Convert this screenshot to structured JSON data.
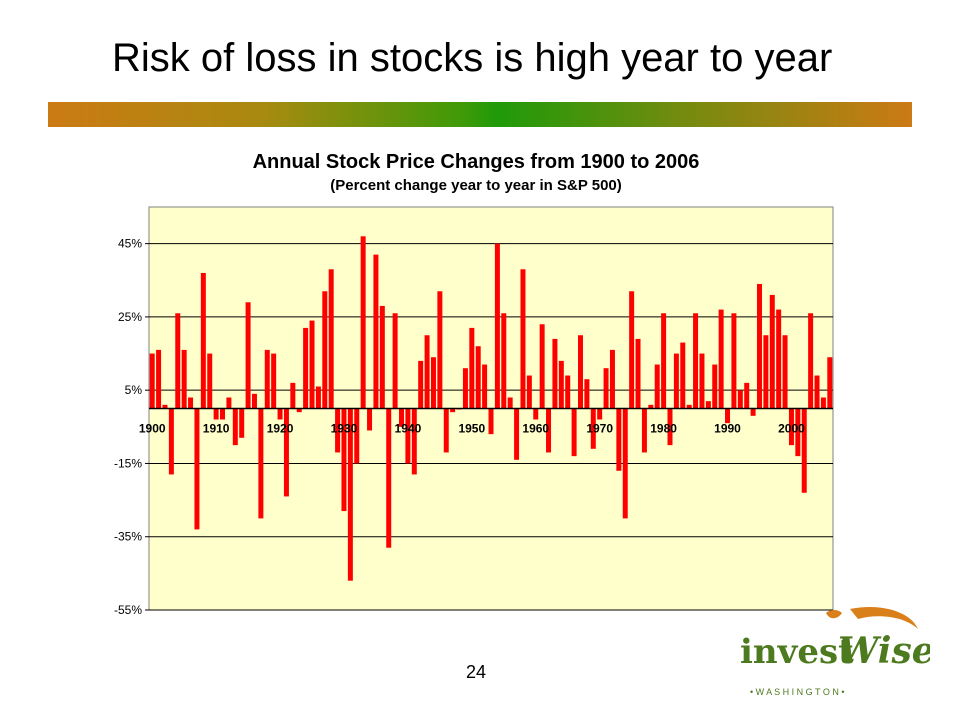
{
  "slide": {
    "title": "Risk of loss in stocks is high year to year",
    "page_number": "24"
  },
  "logo": {
    "brand_part1": "invest",
    "brand_part2": "Wise",
    "tagline": "• W A S H I N G T O N •"
  },
  "colors": {
    "bar": "#ff0000",
    "plot_background": "#ffffcc",
    "accent_orange": "#cc7a14",
    "accent_green": "#1f9a08",
    "logo_green": "#4d7a1e",
    "logo_orange": "#d9801a"
  },
  "chart_data": {
    "type": "bar",
    "title": "Annual Stock Price Changes from 1900 to 2006",
    "subtitle": "(Percent change year to year in S&P 500)",
    "xlabel": "",
    "ylabel": "",
    "ylim": [
      -55,
      55
    ],
    "yticks": [
      "45%",
      "25%",
      "5%",
      "-15%",
      "-35%",
      "-55%"
    ],
    "ytick_values": [
      45,
      25,
      5,
      -15,
      -35,
      -55
    ],
    "grid": true,
    "decade_labels": [
      "1900",
      "1910",
      "1920",
      "1930",
      "1940",
      "1950",
      "1960",
      "1970",
      "1980",
      "1990",
      "2000"
    ],
    "start_year": 1900,
    "values": [
      15,
      16,
      1,
      -18,
      26,
      16,
      3,
      -33,
      37,
      15,
      -3,
      -3,
      3,
      -10,
      -8,
      29,
      4,
      -30,
      16,
      15,
      -3,
      -24,
      7,
      -1,
      22,
      24,
      6,
      32,
      38,
      -12,
      -28,
      -47,
      -15,
      47,
      -6,
      42,
      28,
      -38,
      26,
      -5,
      -15,
      -18,
      13,
      20,
      14,
      32,
      -12,
      -1,
      0,
      11,
      22,
      17,
      12,
      -7,
      45,
      26,
      3,
      -14,
      38,
      9,
      -3,
      23,
      -12,
      19,
      13,
      9,
      -13,
      20,
      8,
      -11,
      -3,
      11,
      16,
      -17,
      -30,
      32,
      19,
      -12,
      1,
      12,
      26,
      -10,
      15,
      18,
      1,
      26,
      15,
      2,
      12,
      27,
      -4,
      26,
      5,
      7,
      -2,
      34,
      20,
      31,
      27,
      20,
      -10,
      -13,
      -23,
      26,
      9,
      3,
      14
    ]
  }
}
